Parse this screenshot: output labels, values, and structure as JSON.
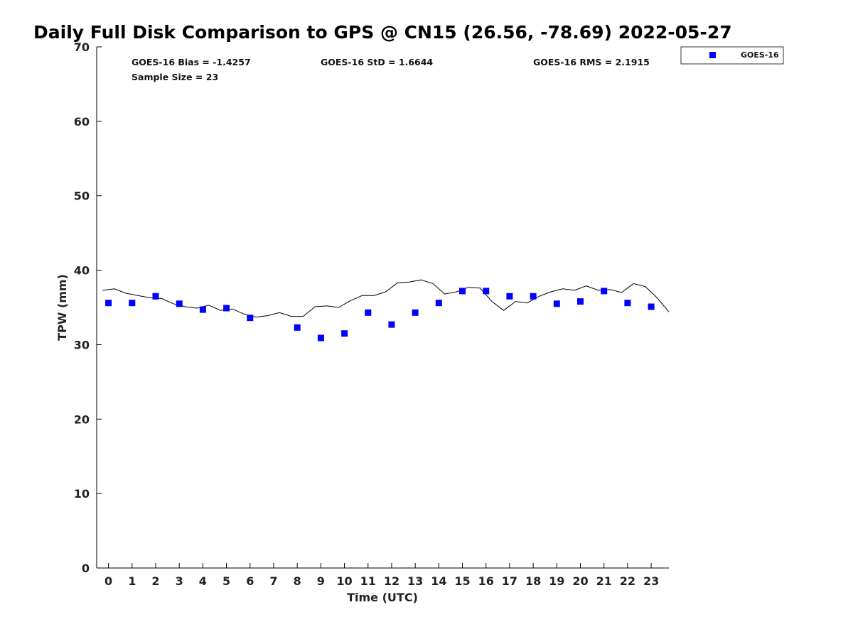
{
  "chart_data": {
    "type": "scatter",
    "title": "Daily Full Disk Comparison to GPS @ CN15 (26.56, -78.69) 2022-05-27",
    "xlabel": "Time (UTC)",
    "ylabel": "TPW (mm)",
    "xlim": [
      -0.5,
      23.75
    ],
    "ylim": [
      0,
      70
    ],
    "x_ticks": [
      0,
      1,
      2,
      3,
      4,
      5,
      6,
      7,
      8,
      9,
      10,
      11,
      12,
      13,
      14,
      15,
      16,
      17,
      18,
      19,
      20,
      21,
      22,
      23
    ],
    "y_ticks": [
      0,
      10,
      20,
      30,
      40,
      50,
      60,
      70
    ],
    "grid": false,
    "legend_position": "top-right, outside plot",
    "stats": {
      "bias": "GOES-16 Bias = -1.4257",
      "std": "GOES-16 StD = 1.6644",
      "rms": "GOES-16 RMS = 2.1915",
      "sample": "Sample Size = 23"
    },
    "series": [
      {
        "name": "GOES-16",
        "kind": "scatter",
        "marker": "square",
        "color": "#0000ff",
        "x": [
          0,
          1,
          2,
          3,
          4,
          5,
          6,
          8,
          9,
          10,
          11,
          12,
          13,
          14,
          15,
          16,
          17,
          18,
          19,
          20,
          21,
          22,
          23
        ],
        "y": [
          35.6,
          35.6,
          36.5,
          35.5,
          34.7,
          34.9,
          33.6,
          32.3,
          30.9,
          31.5,
          34.3,
          32.7,
          34.3,
          35.6,
          37.2,
          37.2,
          36.5,
          36.5,
          35.5,
          35.8,
          37.2,
          35.6,
          35.1
        ]
      },
      {
        "kind": "line",
        "color": "#000000",
        "x": [
          -0.25,
          0.25,
          0.75,
          1.25,
          1.75,
          2.25,
          2.75,
          3.25,
          3.75,
          4.25,
          4.75,
          5.25,
          5.75,
          6.25,
          6.75,
          7.25,
          7.75,
          8.25,
          8.75,
          9.25,
          9.75,
          10.25,
          10.75,
          11.25,
          11.75,
          12.25,
          12.75,
          13.25,
          13.75,
          14.25,
          14.75,
          15.25,
          15.75,
          16.25,
          16.75,
          17.25,
          17.75,
          18.25,
          18.75,
          19.25,
          19.75,
          20.25,
          20.75,
          21.25,
          21.75,
          22.25,
          22.75,
          23.25,
          23.75
        ],
        "y": [
          37.3,
          37.5,
          36.9,
          36.6,
          36.3,
          36.2,
          35.5,
          35.1,
          34.9,
          35.3,
          34.6,
          34.8,
          34.1,
          33.7,
          33.9,
          34.3,
          33.8,
          33.8,
          35.1,
          35.2,
          35.0,
          35.9,
          36.6,
          36.6,
          37.1,
          38.3,
          38.4,
          38.7,
          38.2,
          36.8,
          37.1,
          37.7,
          37.6,
          35.8,
          34.6,
          35.8,
          35.6,
          36.5,
          37.1,
          37.5,
          37.3,
          37.9,
          37.3,
          37.4,
          37.0,
          38.2,
          37.8,
          36.3,
          34.4
        ]
      }
    ]
  }
}
